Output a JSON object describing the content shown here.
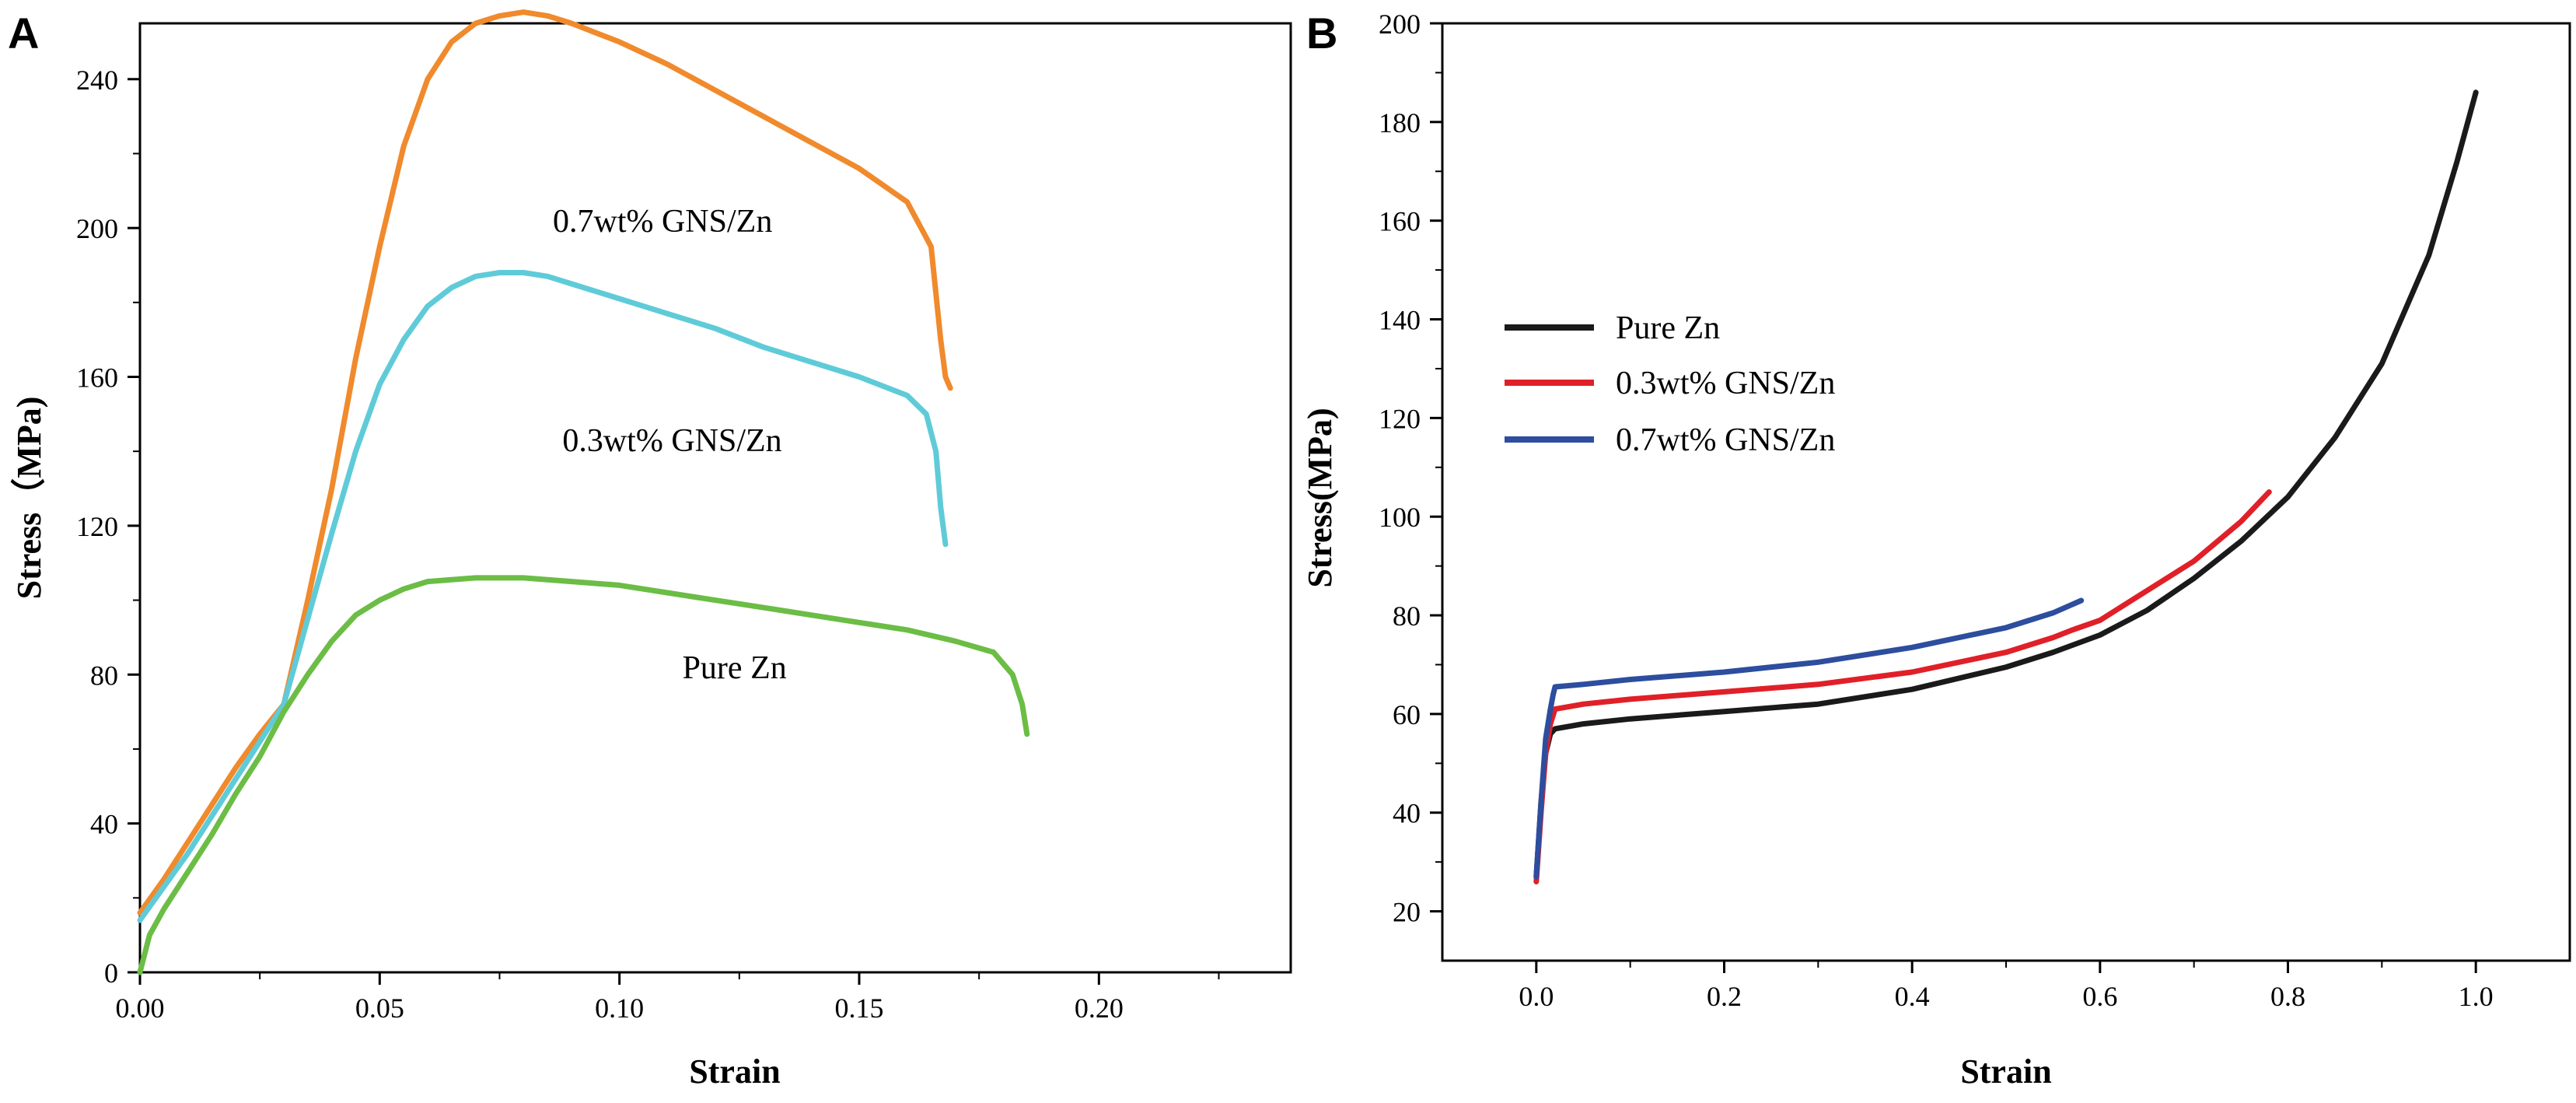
{
  "chart_data": [
    {
      "panel_label": "A",
      "type": "line",
      "xlabel": "Strain",
      "ylabel": "Stress（MPa)",
      "xlim": [
        0.0,
        0.24
      ],
      "ylim": [
        0,
        255
      ],
      "xticks": [
        0.0,
        0.05,
        0.1,
        0.15,
        0.2
      ],
      "xtick_labels": [
        "0.00",
        "0.05",
        "0.10",
        "0.15",
        "0.20"
      ],
      "yticks": [
        0,
        40,
        80,
        120,
        160,
        200,
        240
      ],
      "ytick_labels": [
        "0",
        "40",
        "80",
        "120",
        "160",
        "200",
        "240"
      ],
      "series": [
        {
          "name": "0.7wt% GNS/Zn",
          "color": "#f08a2c",
          "x": [
            0,
            0.005,
            0.01,
            0.015,
            0.02,
            0.025,
            0.03,
            0.035,
            0.04,
            0.045,
            0.05,
            0.055,
            0.06,
            0.065,
            0.07,
            0.075,
            0.08,
            0.085,
            0.09,
            0.1,
            0.11,
            0.12,
            0.13,
            0.14,
            0.15,
            0.16,
            0.165,
            0.167,
            0.168,
            0.169
          ],
          "y": [
            16,
            25,
            35,
            45,
            55,
            64,
            72,
            100,
            130,
            165,
            195,
            222,
            240,
            250,
            255,
            257,
            258,
            257,
            255,
            250,
            244,
            237,
            230,
            223,
            216,
            207,
            195,
            170,
            160,
            157
          ]
        },
        {
          "name": "0.3wt% GNS/Zn",
          "color": "#5fcbd8",
          "x": [
            0,
            0.005,
            0.01,
            0.015,
            0.02,
            0.025,
            0.03,
            0.035,
            0.04,
            0.045,
            0.05,
            0.055,
            0.06,
            0.065,
            0.07,
            0.075,
            0.08,
            0.085,
            0.09,
            0.1,
            0.11,
            0.12,
            0.13,
            0.14,
            0.15,
            0.16,
            0.164,
            0.166,
            0.167,
            0.168
          ],
          "y": [
            14,
            23,
            32,
            42,
            52,
            62,
            72,
            95,
            118,
            140,
            158,
            170,
            179,
            184,
            187,
            188,
            188,
            187,
            185,
            181,
            177,
            173,
            168,
            164,
            160,
            155,
            150,
            140,
            125,
            115
          ]
        },
        {
          "name": "Pure Zn",
          "color": "#6bbd45",
          "x": [
            0,
            0.002,
            0.005,
            0.01,
            0.015,
            0.02,
            0.025,
            0.03,
            0.035,
            0.04,
            0.045,
            0.05,
            0.055,
            0.06,
            0.07,
            0.08,
            0.09,
            0.1,
            0.11,
            0.12,
            0.13,
            0.14,
            0.15,
            0.16,
            0.17,
            0.178,
            0.182,
            0.184,
            0.185
          ],
          "y": [
            0,
            10,
            17,
            27,
            37,
            48,
            58,
            70,
            80,
            89,
            96,
            100,
            103,
            105,
            106,
            106,
            105,
            104,
            102,
            100,
            98,
            96,
            94,
            92,
            89,
            86,
            80,
            72,
            64
          ]
        }
      ],
      "annotations": [
        {
          "text": "0.7wt% GNS/Zn",
          "x": 0.109,
          "y": 199
        },
        {
          "text": "0.3wt% GNS/Zn",
          "x": 0.111,
          "y": 140
        },
        {
          "text": "Pure Zn",
          "x": 0.124,
          "y": 79
        }
      ]
    },
    {
      "panel_label": "B",
      "type": "line",
      "xlabel": "Strain",
      "ylabel": "Stress(MPa)",
      "xlim": [
        -0.1,
        1.1
      ],
      "ylim": [
        10,
        200
      ],
      "xticks": [
        0.0,
        0.2,
        0.4,
        0.6,
        0.8,
        1.0
      ],
      "xtick_labels": [
        "0.0",
        "0.2",
        "0.4",
        "0.6",
        "0.8",
        "1.0"
      ],
      "yticks": [
        20,
        40,
        60,
        80,
        100,
        120,
        140,
        160,
        180,
        200
      ],
      "ytick_labels": [
        "20",
        "40",
        "60",
        "80",
        "100",
        "120",
        "140",
        "160",
        "180",
        "200"
      ],
      "legend_position": "center-left",
      "series": [
        {
          "name": "Pure Zn",
          "color": "#1a1a1a",
          "x": [
            0.0,
            0.005,
            0.01,
            0.015,
            0.02,
            0.05,
            0.1,
            0.2,
            0.3,
            0.4,
            0.5,
            0.55,
            0.6,
            0.65,
            0.7,
            0.75,
            0.8,
            0.85,
            0.9,
            0.95,
            0.98,
            1.0
          ],
          "y": [
            27,
            42,
            52,
            56,
            57,
            58,
            59,
            60.5,
            62,
            65,
            69.5,
            72.5,
            76,
            81,
            87.5,
            95,
            104,
            116,
            131,
            153,
            172,
            186
          ]
        },
        {
          "name": "0.3wt% GNS/Zn",
          "color": "#e02028",
          "x": [
            0.0,
            0.005,
            0.01,
            0.015,
            0.02,
            0.05,
            0.1,
            0.2,
            0.3,
            0.4,
            0.5,
            0.55,
            0.57,
            0.6,
            0.65,
            0.7,
            0.75,
            0.78
          ],
          "y": [
            26,
            40,
            52,
            58,
            61,
            62,
            63,
            64.5,
            66,
            68.5,
            72.5,
            75.5,
            77,
            79,
            85,
            91,
            99,
            105
          ]
        },
        {
          "name": "0.7wt% GNS/Zn",
          "color": "#2d4d9e",
          "x": [
            0.0,
            0.005,
            0.01,
            0.015,
            0.018,
            0.02,
            0.05,
            0.1,
            0.2,
            0.3,
            0.4,
            0.5,
            0.55,
            0.58
          ],
          "y": [
            27,
            42,
            55,
            61,
            64,
            65.5,
            66,
            67,
            68.5,
            70.5,
            73.5,
            77.5,
            80.5,
            83
          ]
        }
      ]
    }
  ]
}
